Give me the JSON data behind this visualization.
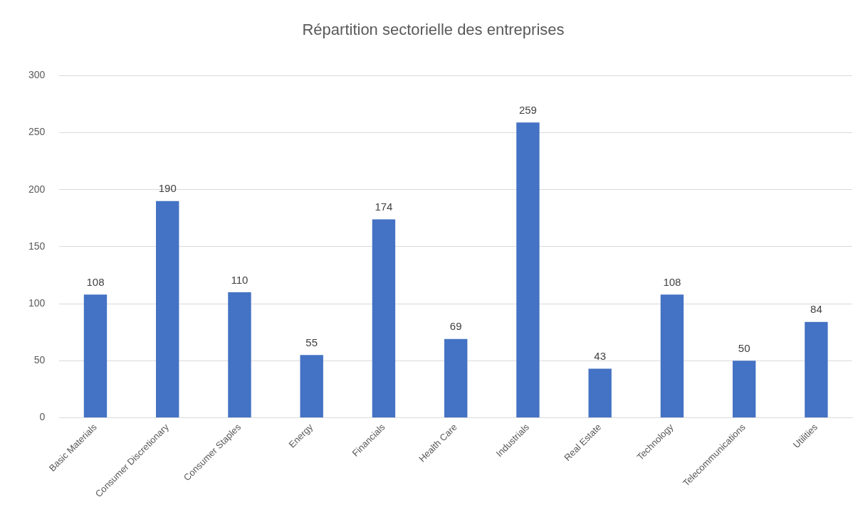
{
  "chart_data": {
    "type": "bar",
    "title": "Répartition sectorielle des entreprises",
    "categories": [
      "Basic Materials",
      "Consumer Discretionary",
      "Consumer Staples",
      "Energy",
      "Financials",
      "Health Care",
      "Industrials",
      "Real Estate",
      "Technology",
      "Telecommunications",
      "Utilities"
    ],
    "values": [
      108,
      190,
      110,
      55,
      174,
      69,
      259,
      43,
      108,
      50,
      84
    ],
    "color": "#4472c4",
    "ylim": [
      0,
      300
    ],
    "yticks": [
      0,
      50,
      100,
      150,
      200,
      250,
      300
    ],
    "grid": "y",
    "data_labels": true,
    "legend": false
  }
}
